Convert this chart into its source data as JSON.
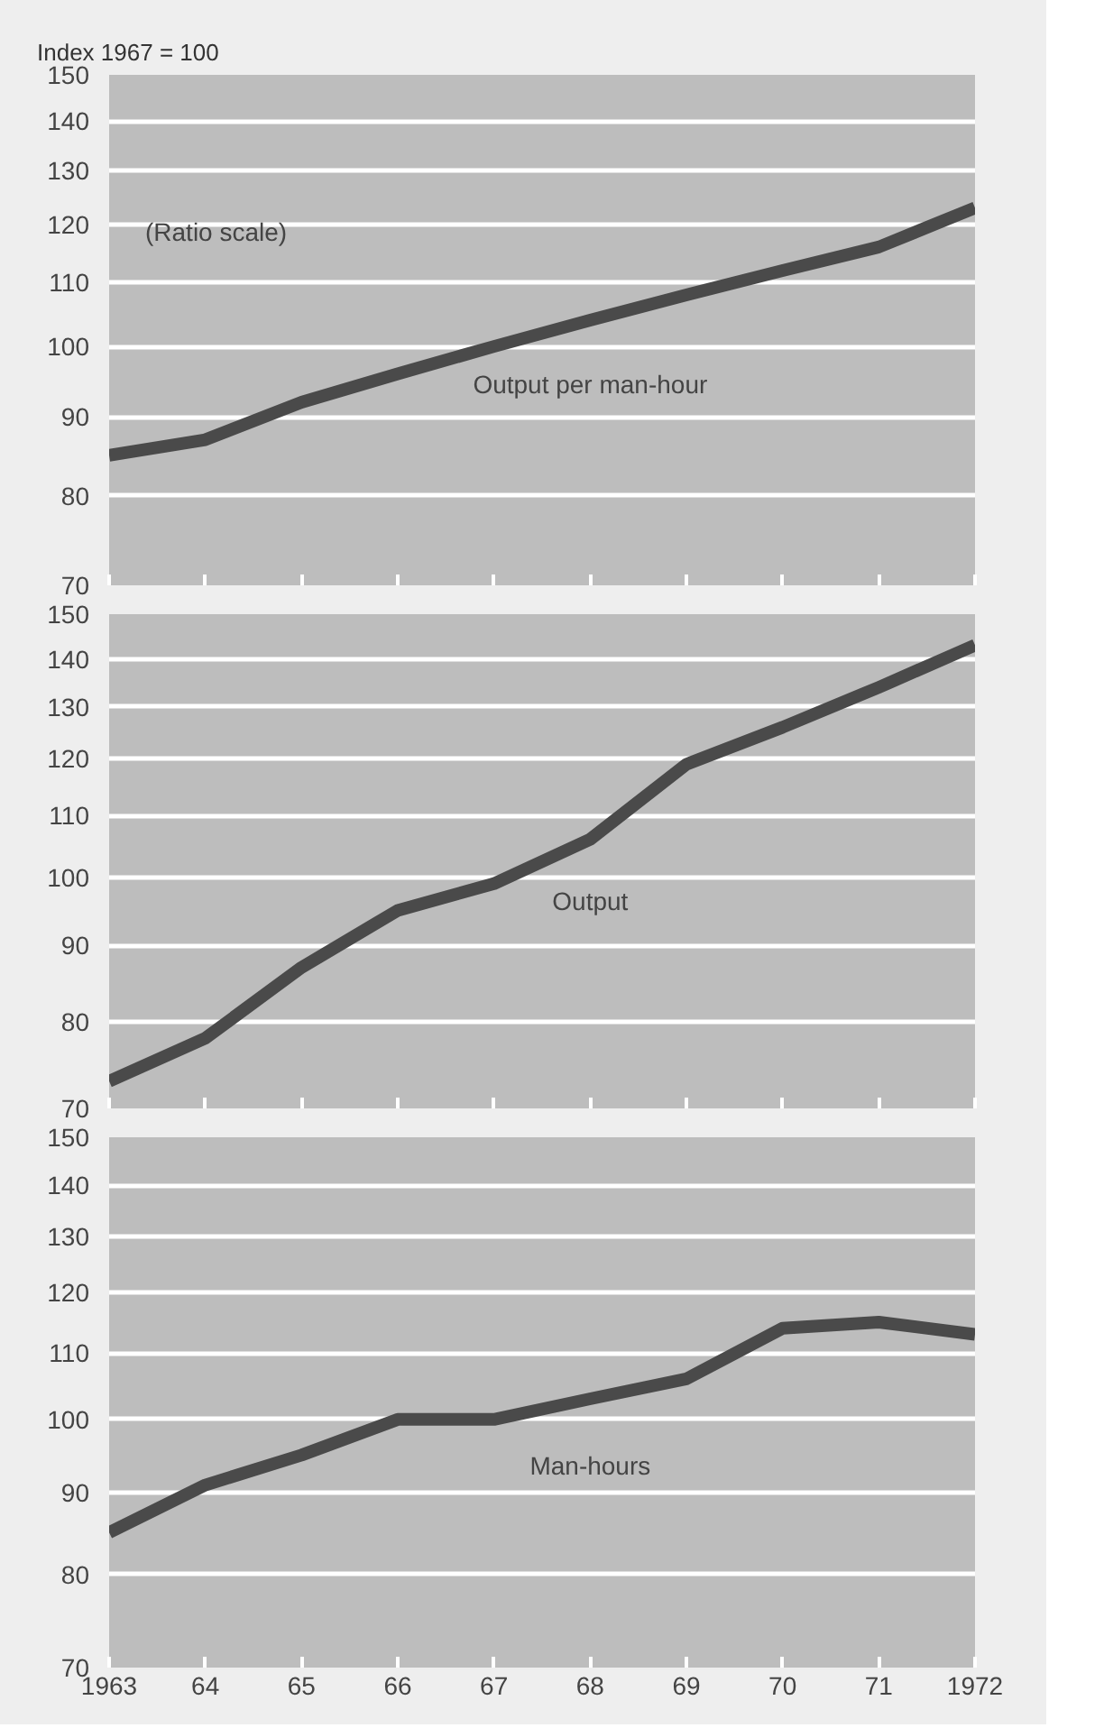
{
  "chart_data": [
    {
      "type": "line",
      "title": "Index 1967 = 100",
      "annotations": [
        "(Ratio scale)"
      ],
      "x": [
        1963,
        1964,
        1965,
        1966,
        1967,
        1968,
        1969,
        1970,
        1971,
        1972
      ],
      "series": [
        {
          "name": "Output per man-hour",
          "color": "#4a4a4a",
          "values": [
            85,
            87,
            92,
            96,
            100,
            104,
            108,
            112,
            116,
            123
          ]
        }
      ],
      "xlim": [
        1963,
        1972
      ],
      "xticks": [
        {
          "value": 1963,
          "label": null
        },
        {
          "value": 1964,
          "label": null
        },
        {
          "value": 1965,
          "label": null
        },
        {
          "value": 1966,
          "label": null
        },
        {
          "value": 1967,
          "label": null
        },
        {
          "value": 1968,
          "label": null
        },
        {
          "value": 1969,
          "label": null
        },
        {
          "value": 1970,
          "label": null
        },
        {
          "value": 1971,
          "label": null
        },
        {
          "value": 1972,
          "label": null
        }
      ],
      "ylim": [
        70,
        150
      ],
      "yticks": [
        70,
        80,
        90,
        100,
        110,
        120,
        130,
        140,
        150
      ],
      "log": "y",
      "grid": "y",
      "tick_labels": "y",
      "line_style": "solid"
    },
    {
      "type": "line",
      "x": [
        1963,
        1964,
        1965,
        1966,
        1967,
        1968,
        1969,
        1970,
        1971,
        1972
      ],
      "series": [
        {
          "name": "Output",
          "color": "#4a4a4a",
          "values": [
            73,
            78,
            87,
            95,
            99,
            106,
            119,
            126,
            134,
            143
          ]
        }
      ],
      "xlim": [
        1963,
        1972
      ],
      "xticks": [
        {
          "value": 1963,
          "label": null
        },
        {
          "value": 1964,
          "label": null
        },
        {
          "value": 1965,
          "label": null
        },
        {
          "value": 1966,
          "label": null
        },
        {
          "value": 1967,
          "label": null
        },
        {
          "value": 1968,
          "label": null
        },
        {
          "value": 1969,
          "label": null
        },
        {
          "value": 1970,
          "label": null
        },
        {
          "value": 1971,
          "label": null
        },
        {
          "value": 1972,
          "label": null
        }
      ],
      "ylim": [
        70,
        150
      ],
      "yticks": [
        70,
        80,
        90,
        100,
        110,
        120,
        130,
        140,
        150
      ],
      "log": "y",
      "grid": "y",
      "tick_labels": "y",
      "line_style": "solid"
    },
    {
      "type": "line",
      "x": [
        1963,
        1964,
        1965,
        1966,
        1967,
        1968,
        1969,
        1970,
        1971,
        1972
      ],
      "series": [
        {
          "name": "Man-hours",
          "color": "#4a4a4a",
          "values": [
            85,
            91,
            95,
            100,
            100,
            103,
            106,
            114,
            115,
            113
          ]
        }
      ],
      "xlim": [
        1963,
        1972
      ],
      "xticks": [
        1963,
        {
          "value": 1964,
          "label": "64"
        },
        {
          "value": 1965,
          "label": "65"
        },
        {
          "value": 1966,
          "label": "66"
        },
        {
          "value": 1967,
          "label": "67"
        },
        {
          "value": 1968,
          "label": "68"
        },
        {
          "value": 1969,
          "label": "69"
        },
        {
          "value": 1970,
          "label": "70"
        },
        {
          "value": 1971,
          "label": "71"
        },
        1972
      ],
      "ylim": [
        70,
        150
      ],
      "yticks": [
        70,
        80,
        90,
        100,
        110,
        120,
        130,
        140,
        150
      ],
      "log": "y",
      "grid": "y",
      "line_style": "solid"
    }
  ]
}
